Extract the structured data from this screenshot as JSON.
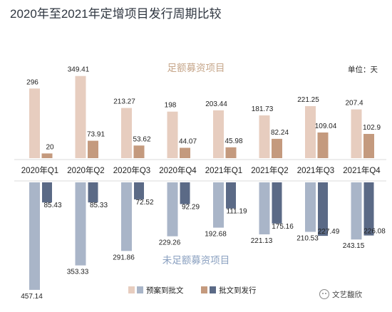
{
  "title": "2020年至2021年定增项目发行周期比较",
  "unit_label": "单位：天",
  "watermark": "文艺馥欣",
  "colors": {
    "top_a": "#e7cdbf",
    "top_b": "#c49a7e",
    "bot_a": "#a9b5c8",
    "bot_b": "#5b6a86",
    "top_section_text": "#c6a68a",
    "bot_section_text": "#8aa0c0",
    "title": "#2f3640"
  },
  "chart_data": {
    "type": "bar",
    "title": "2020年至2021年定增项目发行周期比较",
    "unit": "单位：天",
    "categories": [
      "2020年Q1",
      "2020年Q2",
      "2020年Q3",
      "2020年Q4",
      "2021年Q1",
      "2021年Q2",
      "2021年Q3",
      "2021年Q4"
    ],
    "panels": [
      {
        "name": "足额募资项目",
        "direction": "up",
        "series": [
          {
            "name": "预案到批文",
            "values": [
              296,
              349.41,
              213.27,
              198,
              203.44,
              181.73,
              221.25,
              207.4
            ]
          },
          {
            "name": "批文到发行",
            "values": [
              20,
              73.91,
              53.62,
              44.07,
              45.98,
              82.24,
              109.04,
              102.9
            ]
          }
        ]
      },
      {
        "name": "未足额募资项目",
        "direction": "down",
        "series": [
          {
            "name": "预案到批文",
            "values": [
              457.14,
              353.33,
              291.86,
              229.26,
              192.68,
              221.13,
              210.53,
              243.15
            ]
          },
          {
            "name": "批文到发行",
            "values": [
              85.43,
              85.33,
              72.52,
              92.29,
              111.19,
              175.16,
              227.49,
              226.08
            ]
          }
        ]
      }
    ],
    "legend": [
      {
        "label": "预案到批文"
      },
      {
        "label": "批文到发行"
      }
    ],
    "legend_placement": "bottom",
    "grid": false
  }
}
